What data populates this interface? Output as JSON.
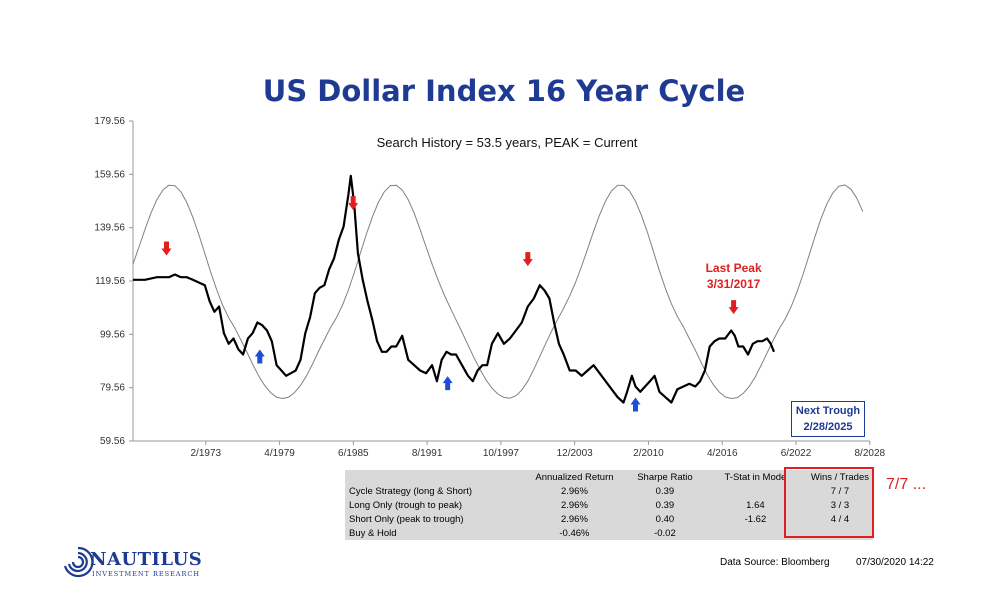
{
  "chart_data": {
    "type": "line",
    "title": "US Dollar Index 16 Year Cycle",
    "subtitle": "Search History = 53.5 years, PEAK = Current",
    "y_ticks": [
      "179.56",
      "159.56",
      "139.56",
      "119.56",
      "99.56",
      "79.56",
      "59.56"
    ],
    "ylim": [
      59.56,
      179.56
    ],
    "x_ticks": [
      "2/1973",
      "4/1979",
      "6/1985",
      "8/1991",
      "10/1997",
      "12/2003",
      "2/2010",
      "4/2016",
      "6/2022",
      "8/2028"
    ],
    "xlim": [
      1967.0,
      2028.6
    ],
    "grid": false,
    "series": [
      {
        "name": "",
        "x": [
          1967.0,
          1968.0,
          1969.0,
          1970.0,
          1970.5,
          1971.0,
          1971.5,
          1972.0,
          1972.5,
          1973.0,
          1973.4,
          1973.8,
          1974.2,
          1974.6,
          1975.0,
          1975.4,
          1975.8,
          1976.2,
          1976.6,
          1977.0,
          1977.4,
          1977.8,
          1978.2,
          1978.6,
          1979.0,
          1979.4,
          1979.8,
          1980.2,
          1980.6,
          1981.0,
          1981.4,
          1981.8,
          1982.2,
          1982.6,
          1983.0,
          1983.4,
          1983.8,
          1984.2,
          1984.6,
          1985.0,
          1985.2,
          1985.5,
          1985.8,
          1986.2,
          1986.6,
          1987.0,
          1987.4,
          1987.8,
          1988.2,
          1988.6,
          1989.0,
          1989.5,
          1990.0,
          1990.5,
          1991.0,
          1991.5,
          1992.0,
          1992.4,
          1992.8,
          1993.2,
          1993.6,
          1994.0,
          1994.5,
          1995.0,
          1995.4,
          1995.8,
          1996.2,
          1996.6,
          1997.0,
          1997.5,
          1998.0,
          1998.5,
          1999.0,
          1999.5,
          2000.0,
          2000.5,
          2001.0,
          2001.4,
          2001.8,
          2002.2,
          2002.6,
          2003.0,
          2003.5,
          2004.0,
          2004.5,
          2005.0,
          2005.5,
          2006.0,
          2006.5,
          2007.0,
          2007.5,
          2008.0,
          2008.3,
          2008.7,
          2009.0,
          2009.4,
          2009.8,
          2010.2,
          2010.6,
          2011.0,
          2011.5,
          2012.0,
          2012.5,
          2013.0,
          2013.5,
          2014.0,
          2014.4,
          2014.8,
          2015.2,
          2015.6,
          2016.0,
          2016.5,
          2017.0,
          2017.3,
          2017.6,
          2018.0,
          2018.4,
          2018.8,
          2019.2,
          2019.6,
          2020.0,
          2020.3,
          2020.58
        ],
        "values": [
          120,
          120,
          121,
          121,
          122,
          121,
          121,
          120,
          119,
          118,
          112,
          108,
          110,
          100,
          96,
          98,
          94,
          92,
          98,
          100,
          104,
          103,
          101,
          97,
          88,
          86,
          84,
          85,
          86,
          90,
          100,
          106,
          115,
          117,
          118,
          124,
          128,
          135,
          140,
          152,
          159,
          148,
          130,
          120,
          112,
          105,
          97,
          93,
          93,
          95,
          95,
          99,
          90,
          88,
          86,
          85,
          88,
          82,
          90,
          93,
          92,
          92,
          88,
          84,
          82,
          86,
          88,
          88,
          96,
          100,
          96,
          98,
          101,
          104,
          110,
          113,
          118,
          116,
          113,
          104,
          96,
          92,
          86,
          86,
          84,
          86,
          88,
          85,
          82,
          79,
          76,
          74,
          78,
          84,
          80,
          78,
          80,
          82,
          84,
          78,
          76,
          74,
          79,
          80,
          81,
          80,
          82,
          86,
          95,
          97,
          98,
          98,
          101,
          99,
          95,
          95,
          92,
          96,
          97,
          97,
          98,
          96,
          93
        ]
      },
      {
        "name": "",
        "x": [
          1967.0,
          1967.5,
          1968.0,
          1968.5,
          1969.0,
          1969.5,
          1970.0,
          1970.5,
          1971.0,
          1971.5,
          1972.0,
          1972.5,
          1973.0,
          1973.5,
          1974.0,
          1974.5,
          1975.0,
          1975.5,
          1976.0,
          1976.5,
          1977.0,
          1977.5,
          1978.0,
          1978.5,
          1979.0,
          1979.5,
          1980.0,
          1980.5,
          1981.0,
          1981.5,
          1982.0,
          1982.5,
          1983.0,
          1983.5,
          1984.0,
          1984.5,
          1985.0,
          1985.5,
          1986.0,
          1986.5,
          1987.0,
          1987.5,
          1988.0,
          1988.5,
          1989.0,
          1989.5,
          1990.0,
          1990.5,
          1991.0,
          1991.5,
          1992.0,
          1992.5,
          1993.0,
          1993.5,
          1994.0,
          1994.5,
          1995.0,
          1995.5,
          1996.0,
          1996.5,
          1997.0,
          1997.5,
          1998.0,
          1998.5,
          1999.0,
          1999.5,
          2000.0,
          2000.5,
          2001.0,
          2001.5,
          2002.0,
          2002.5,
          2003.0,
          2003.5,
          2004.0,
          2004.5,
          2005.0,
          2005.5,
          2006.0,
          2006.5,
          2007.0,
          2007.5,
          2008.0,
          2008.5,
          2009.0,
          2009.5,
          2010.0,
          2010.5,
          2011.0,
          2011.5,
          2012.0,
          2012.5,
          2013.0,
          2013.5,
          2014.0,
          2014.5,
          2015.0,
          2015.5,
          2016.0,
          2016.5,
          2017.0,
          2017.5,
          2018.0,
          2018.5,
          2019.0,
          2019.5,
          2020.0,
          2020.5,
          2021.0,
          2021.5,
          2022.0,
          2022.5,
          2023.0,
          2023.5,
          2024.0,
          2024.5,
          2025.0,
          2025.5,
          2026.0,
          2026.5,
          2027.0,
          2027.5,
          2028.0
        ],
        "values": [
          125.9,
          132.3,
          138.9,
          145.0,
          150.1,
          153.7,
          155.5,
          155.3,
          153.0,
          149.0,
          143.5,
          137.0,
          129.9,
          122.7,
          116.2,
          110.4,
          105.8,
          102.0,
          97.6,
          93.1,
          88.4,
          84.0,
          80.4,
          77.7,
          76.0,
          75.5,
          76.0,
          77.7,
          80.4,
          84.0,
          88.4,
          93.1,
          97.6,
          102.0,
          105.8,
          110.4,
          116.2,
          122.7,
          129.9,
          137.0,
          143.5,
          149.0,
          153.0,
          155.3,
          155.5,
          153.7,
          150.1,
          145.0,
          138.9,
          132.3,
          125.9,
          119.9,
          114.5,
          109.6,
          105.0,
          100.4,
          95.6,
          90.8,
          86.4,
          82.5,
          79.4,
          77.2,
          75.9,
          75.6,
          76.5,
          78.7,
          82.0,
          86.4,
          91.3,
          96.2,
          100.9,
          105.2,
          109.4,
          114.0,
          119.2,
          125.2,
          131.6,
          138.2,
          144.4,
          149.6,
          153.4,
          155.4,
          155.4,
          153.3,
          149.5,
          144.1,
          137.7,
          130.7,
          123.4,
          116.8,
          111.0,
          106.2,
          102.4,
          98.0,
          93.6,
          88.9,
          84.4,
          80.7,
          77.9,
          76.1,
          75.5,
          75.8,
          77.4,
          80.0,
          83.5,
          87.9,
          92.6,
          97.2,
          101.6,
          105.3,
          109.8,
          115.5,
          122.0,
          129.1,
          136.2,
          142.9,
          148.5,
          152.6,
          155.1,
          155.6,
          154.0,
          150.6,
          145.6
        ]
      }
    ],
    "annotations": [
      {
        "text": "Last Peak",
        "x": 2017.2,
        "y": 123
      },
      {
        "text": "3/31/2017",
        "x": 2017.2,
        "y": 117
      }
    ],
    "peak_markers": [
      {
        "x": 1969.8,
        "y": 131,
        "direction": "down",
        "color": "#e02020"
      },
      {
        "x": 1985.4,
        "y": 148,
        "direction": "down",
        "color": "#e02020"
      },
      {
        "x": 2000.0,
        "y": 127,
        "direction": "down",
        "color": "#e02020"
      },
      {
        "x": 2017.2,
        "y": 109,
        "direction": "down",
        "color": "#e02020"
      }
    ],
    "trough_markers": [
      {
        "x": 1977.6,
        "y": 92,
        "direction": "up",
        "color": "#1a4fd6"
      },
      {
        "x": 1993.3,
        "y": 82,
        "direction": "up",
        "color": "#1a4fd6"
      },
      {
        "x": 2009.0,
        "y": 74,
        "direction": "up",
        "color": "#1a4fd6"
      }
    ],
    "colors": {
      "index_line": "#000000",
      "cycle_wave": "#808080",
      "title": "#1f3a93",
      "peak": "#e02020",
      "trough": "#1a4fd6"
    }
  },
  "next_trough": {
    "line1": "Next Trough",
    "line2": "2/28/2025"
  },
  "stats_table": {
    "headers": [
      "",
      "Annualized Return",
      "Sharpe Ratio",
      "T-Stat in Mode",
      "Wins / Trades"
    ],
    "rows": [
      [
        "Cycle Strategy (long & Short)",
        "2.96%",
        "0.39",
        "",
        "7 / 7"
      ],
      [
        "Long Only (trough to peak)",
        "2.96%",
        "0.39",
        "1.64",
        "3 / 3"
      ],
      [
        "Short Only (peak to trough)",
        "2.96%",
        "0.40",
        "-1.62",
        "4 / 4"
      ],
      [
        "Buy & Hold",
        "-0.46%",
        "-0.02",
        "",
        ""
      ]
    ]
  },
  "wins_note": "7/7 ...",
  "logo": {
    "name": "NAUTILUS",
    "sub": "INVESTMENT RESEARCH"
  },
  "footer": {
    "source": "Data Source: Bloomberg",
    "stamp": "07/30/2020 14:22"
  }
}
